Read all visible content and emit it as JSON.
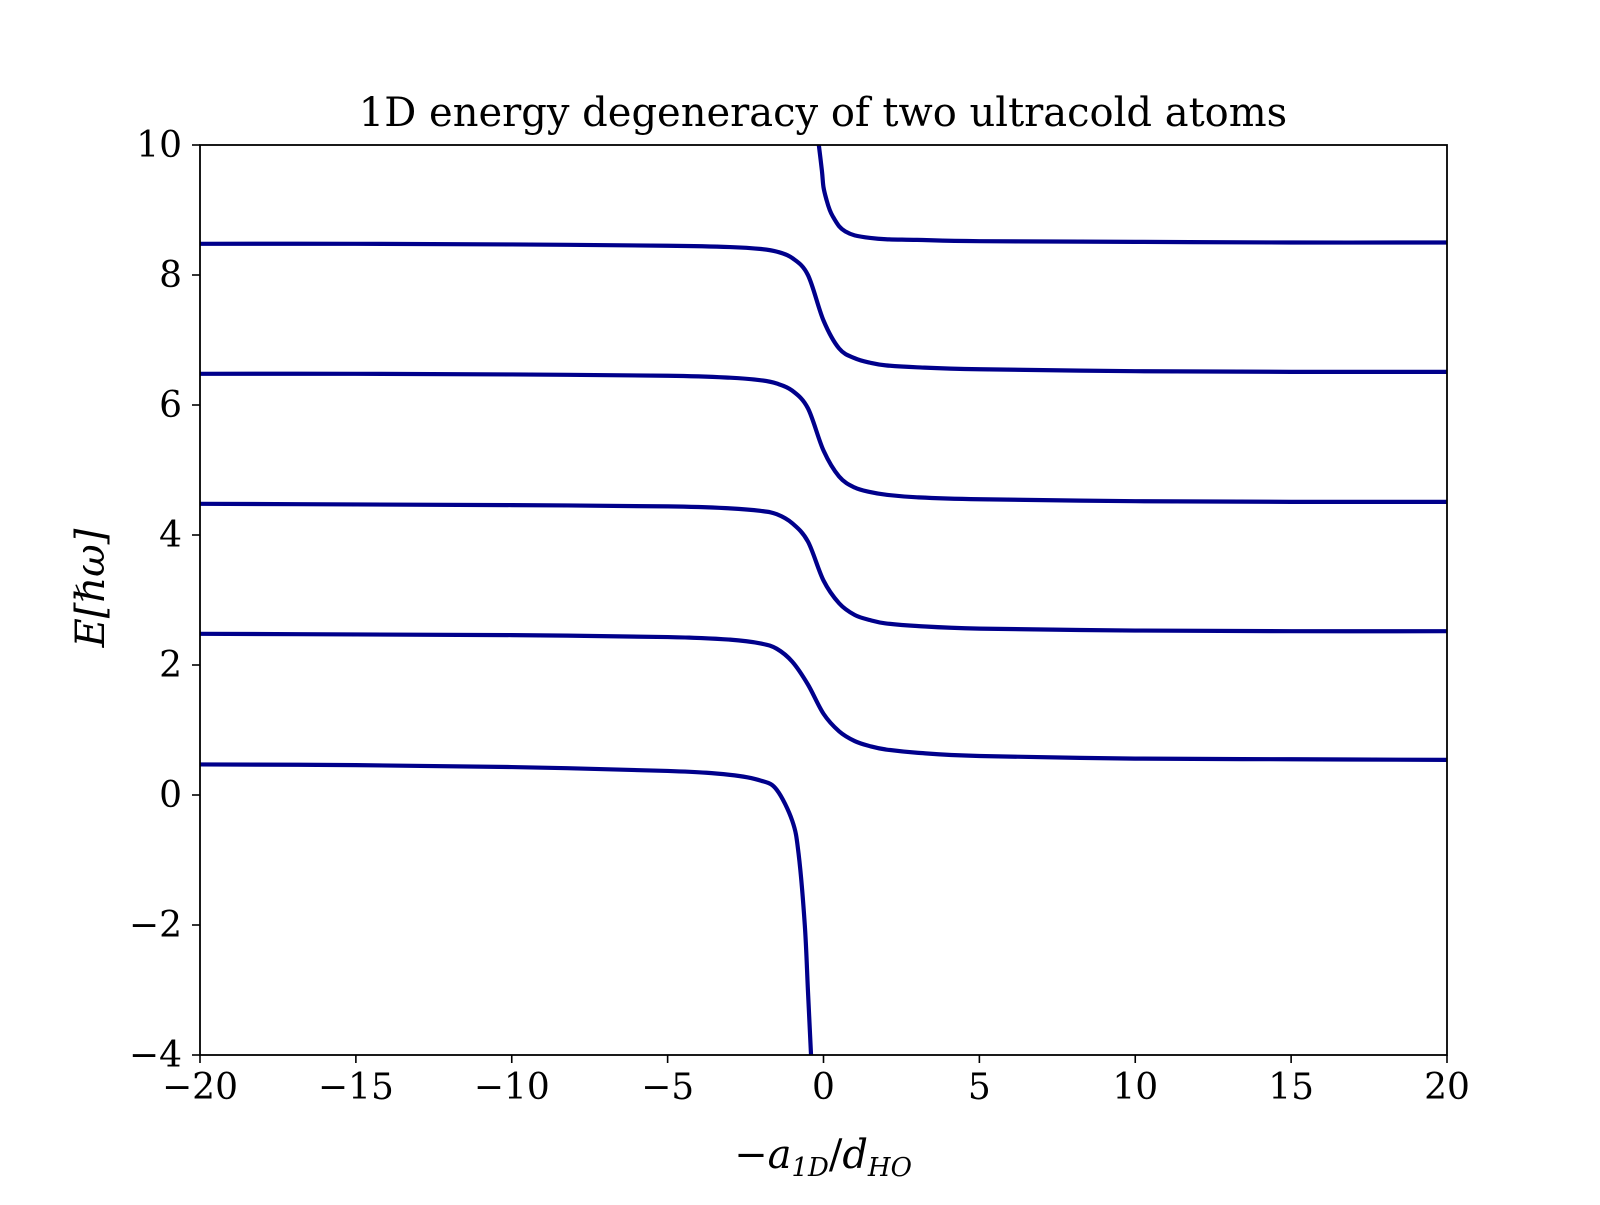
{
  "chart_data": {
    "type": "line",
    "title": "1D energy degeneracy of two ultracold atoms",
    "xlabel": "−a₁ᴅ/dʜᴏ",
    "xlabel_parts": {
      "minus": "−",
      "a": "a",
      "a_sub": "1D",
      "slash": "/",
      "d": "d",
      "d_sub": "HO"
    },
    "ylabel": "E[ℏω]",
    "xlim": [
      -20,
      20
    ],
    "ylim": [
      -4,
      10
    ],
    "xticks": [
      -20,
      -15,
      -10,
      -5,
      0,
      5,
      10,
      15,
      20
    ],
    "xtick_labels": [
      "−20",
      "−15",
      "−10",
      "−5",
      "0",
      "5",
      "10",
      "15",
      "20"
    ],
    "yticks": [
      -4,
      -2,
      0,
      2,
      4,
      6,
      8,
      10
    ],
    "ytick_labels": [
      "−4",
      "−2",
      "0",
      "2",
      "4",
      "6",
      "8",
      "10"
    ],
    "grid": false,
    "color": "#00008b",
    "series": [
      {
        "x": [
          -20,
          -15,
          -10,
          -5,
          -3,
          -2,
          -1.5,
          -1,
          -0.8,
          -0.6,
          -0.5,
          -0.4
        ],
        "y": [
          0.47,
          0.46,
          0.43,
          0.37,
          0.31,
          0.22,
          0.08,
          -0.4,
          -0.9,
          -2.0,
          -3.0,
          -4.0
        ]
      },
      {
        "x": [
          -20,
          -15,
          -10,
          -5,
          -3,
          -2,
          -1.5,
          -1,
          -0.5,
          0,
          0.5,
          1,
          1.5,
          2,
          3,
          5,
          10,
          15,
          20
        ],
        "y": [
          2.48,
          2.47,
          2.46,
          2.43,
          2.39,
          2.33,
          2.25,
          2.05,
          1.7,
          1.25,
          0.98,
          0.83,
          0.75,
          0.7,
          0.65,
          0.6,
          0.56,
          0.55,
          0.54
        ]
      },
      {
        "x": [
          -20,
          -15,
          -10,
          -5,
          -3,
          -2,
          -1.5,
          -1,
          -0.5,
          0,
          0.5,
          1,
          1.5,
          2,
          3,
          5,
          10,
          15,
          20
        ],
        "y": [
          4.48,
          4.47,
          4.46,
          4.44,
          4.41,
          4.37,
          4.32,
          4.18,
          3.9,
          3.3,
          2.95,
          2.77,
          2.69,
          2.64,
          2.6,
          2.56,
          2.53,
          2.52,
          2.52
        ]
      },
      {
        "x": [
          -20,
          -15,
          -10,
          -5,
          -3,
          -2,
          -1.5,
          -1,
          -0.5,
          0,
          0.5,
          1,
          1.5,
          2,
          3,
          5,
          10,
          15,
          20
        ],
        "y": [
          6.48,
          6.48,
          6.47,
          6.45,
          6.42,
          6.38,
          6.33,
          6.22,
          5.95,
          5.3,
          4.9,
          4.73,
          4.66,
          4.62,
          4.58,
          4.55,
          4.52,
          4.51,
          4.51
        ]
      },
      {
        "x": [
          -20,
          -15,
          -10,
          -5,
          -3,
          -2,
          -1.5,
          -1,
          -0.5,
          0,
          0.5,
          1,
          1.5,
          2,
          3,
          5,
          10,
          15,
          20
        ],
        "y": [
          8.48,
          8.48,
          8.47,
          8.45,
          8.43,
          8.4,
          8.36,
          8.26,
          8.0,
          7.3,
          6.87,
          6.72,
          6.65,
          6.61,
          6.58,
          6.55,
          6.52,
          6.51,
          6.51
        ]
      },
      {
        "x": [
          -0.15,
          -0.05,
          0,
          0.1,
          0.2,
          0.3,
          0.5,
          0.7,
          1,
          1.5,
          2,
          3,
          5,
          10,
          15,
          20
        ],
        "y": [
          10.0,
          9.6,
          9.35,
          9.15,
          9.0,
          8.9,
          8.75,
          8.67,
          8.61,
          8.57,
          8.55,
          8.54,
          8.52,
          8.51,
          8.5,
          8.5
        ]
      }
    ]
  }
}
